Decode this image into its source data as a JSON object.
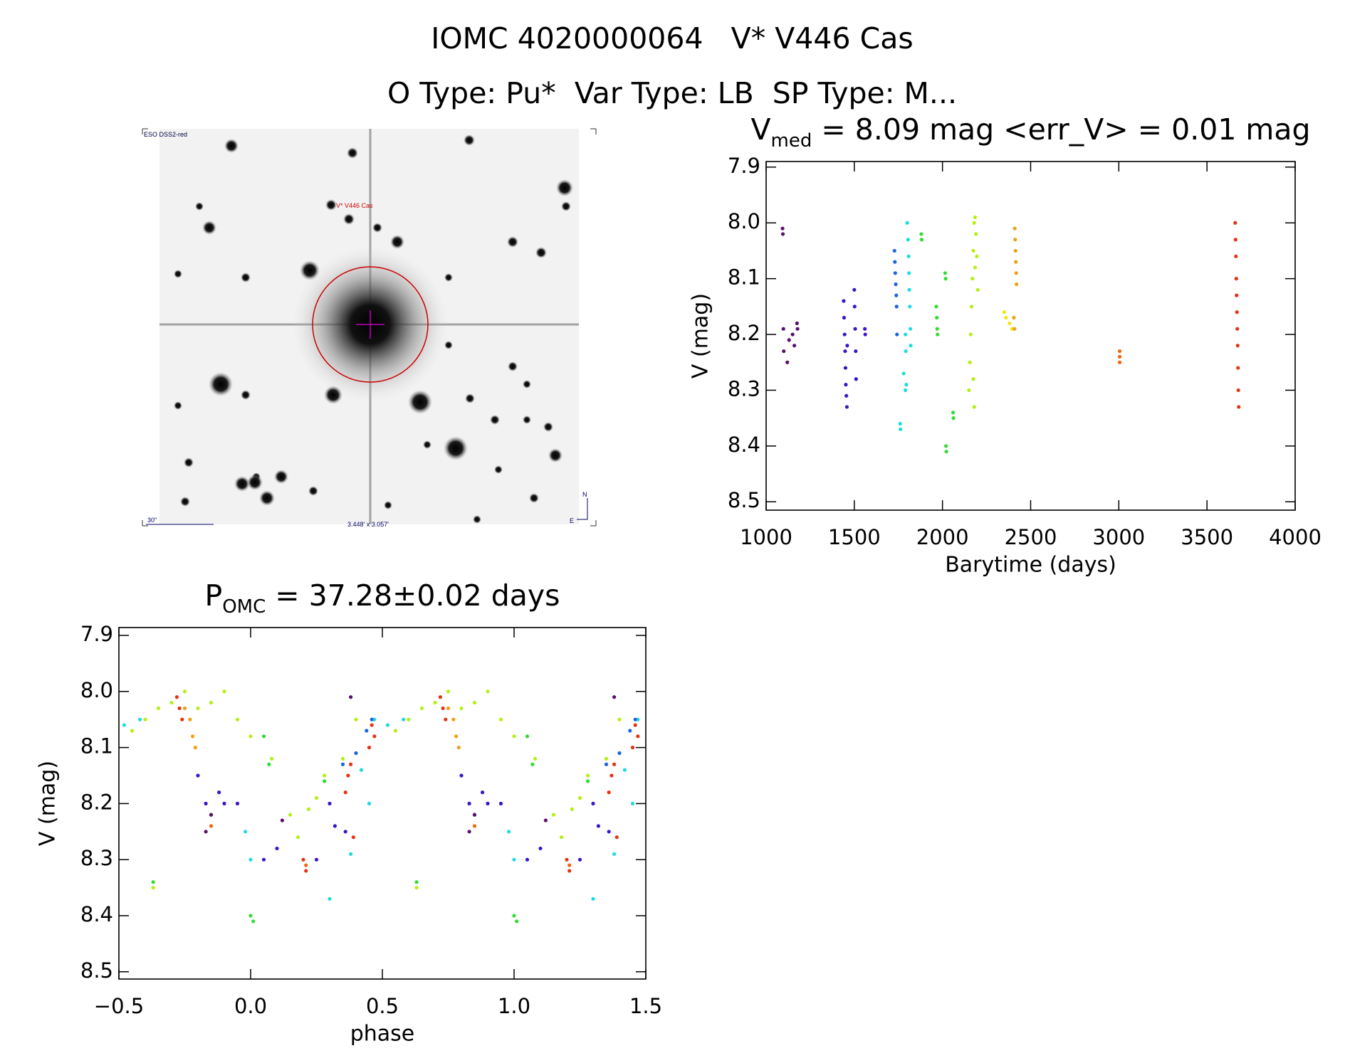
{
  "header": {
    "title": "IOMC 4020000064   V* V446 Cas",
    "subtitle": "O Type: Pu*  Var Type: LB  SP Type: M..."
  },
  "image": {
    "label": "ESO DSS2-red",
    "target": "V* V446 Cas",
    "scale": "30\"",
    "size": "3.448' x 3.057'",
    "north": "N",
    "east": "E"
  },
  "chart_data": [
    {
      "type": "scatter",
      "title": "V",
      "title_sub": "med",
      "title_rest": " = 8.09 mag <err_V> = 0.01 mag",
      "xlabel": "Barytime (days)",
      "ylabel": "V (mag)",
      "xlim": [
        1000,
        4000
      ],
      "xticks": [
        1000,
        1500,
        2000,
        2500,
        3000,
        3500,
        4000
      ],
      "ylim": [
        8.515,
        7.89
      ],
      "yticks": [
        7.9,
        {
          "value": 8,
          "label": "8.0"
        },
        8.1,
        8.2,
        8.3,
        8.4,
        8.5
      ],
      "series": [
        {
          "color": "#5a0f6e",
          "x": [
            1093,
            1095,
            1098,
            1100,
            1120,
            1130,
            1150,
            1160,
            1175,
            1178
          ],
          "values": [
            8.01,
            8.02,
            8.19,
            8.23,
            8.25,
            8.21,
            8.2,
            8.22,
            8.18,
            8.19
          ]
        },
        {
          "color": "#3c14c8",
          "x": [
            1440,
            1442,
            1445,
            1448,
            1450,
            1452,
            1455,
            1458,
            1460,
            1500,
            1502,
            1505,
            1508,
            1510,
            1560,
            1562
          ],
          "values": [
            8.14,
            8.17,
            8.2,
            8.23,
            8.26,
            8.29,
            8.31,
            8.33,
            8.22,
            8.12,
            8.15,
            8.19,
            8.23,
            8.28,
            8.19,
            8.2
          ]
        },
        {
          "color": "#1e64dc",
          "x": [
            1728,
            1730,
            1732,
            1735,
            1738,
            1740,
            1742
          ],
          "values": [
            8.05,
            8.07,
            8.09,
            8.11,
            8.13,
            8.15,
            8.2
          ]
        },
        {
          "color": "#1edcdc",
          "x": [
            1760,
            1762,
            1780,
            1790,
            1795,
            1800,
            1805,
            1808,
            1810,
            1812,
            1815,
            1818,
            1820,
            1790,
            1792
          ],
          "values": [
            8.36,
            8.37,
            8.27,
            8.3,
            8.29,
            8.0,
            8.03,
            8.06,
            8.09,
            8.12,
            8.15,
            8.19,
            8.22,
            8.2,
            8.23
          ]
        },
        {
          "color": "#32dc32",
          "x": [
            1880,
            1882,
            1965,
            1968,
            1970,
            1972,
            2015,
            2018,
            2020,
            2022,
            2060,
            2062
          ],
          "values": [
            8.02,
            8.03,
            8.15,
            8.17,
            8.19,
            8.2,
            8.09,
            8.1,
            8.4,
            8.41,
            8.34,
            8.35
          ]
        },
        {
          "color": "#b4f014",
          "x": [
            2150,
            2155,
            2160,
            2165,
            2170,
            2175,
            2180,
            2185,
            2190,
            2195,
            2200,
            2180,
            2185,
            2175
          ],
          "values": [
            8.3,
            8.25,
            8.2,
            8.15,
            8.1,
            8.05,
            8.0,
            7.99,
            8.02,
            8.06,
            8.12,
            8.33,
            8.08,
            8.28
          ]
        },
        {
          "color": "#f0e614",
          "x": [
            2350,
            2360,
            2380,
            2395
          ],
          "values": [
            8.16,
            8.17,
            8.18,
            8.19
          ]
        },
        {
          "color": "#f0a014",
          "x": [
            2410,
            2412,
            2414,
            2416,
            2418,
            2420,
            2405,
            2408
          ],
          "values": [
            8.01,
            8.03,
            8.05,
            8.07,
            8.09,
            8.11,
            8.17,
            8.19
          ]
        },
        {
          "color": "#f06414",
          "x": [
            3005,
            3005,
            3005
          ],
          "values": [
            8.23,
            8.24,
            8.25
          ]
        },
        {
          "color": "#e63214",
          "x": [
            3660,
            3662,
            3664,
            3666,
            3668,
            3670,
            3672,
            3674,
            3676,
            3678,
            3680
          ],
          "values": [
            8.0,
            8.03,
            8.06,
            8.1,
            8.13,
            8.16,
            8.19,
            8.22,
            8.26,
            8.3,
            8.33
          ]
        }
      ]
    },
    {
      "type": "scatter",
      "title": "P",
      "title_sub": "OMC",
      "title_rest": " = 37.28±0.02 days",
      "xlabel": "phase",
      "ylabel": "V (mag)",
      "xlim": [
        -0.5,
        1.5
      ],
      "xticks": [
        {
          "value": -0.5,
          "label": "−0.5"
        },
        {
          "value": 0,
          "label": "0.0"
        },
        0.5,
        {
          "value": 1,
          "label": "1.0"
        },
        1.5
      ],
      "ylim": [
        8.513,
        7.886
      ],
      "yticks": [
        7.9,
        {
          "value": 8,
          "label": "8.0"
        },
        8.1,
        8.2,
        8.3,
        8.4,
        8.5
      ],
      "series": [
        {
          "color": "#b4f014",
          "x": [
            -0.45,
            -0.4,
            -0.35,
            -0.3,
            -0.25,
            -0.2,
            -0.15,
            -0.1,
            -0.05,
            0.0,
            0.08,
            0.15,
            0.18,
            0.22,
            0.25,
            0.28,
            0.35,
            0.4,
            -0.37,
            0.55,
            0.6,
            0.65,
            0.7,
            0.75,
            0.8,
            0.85,
            0.9,
            0.95,
            1.0,
            1.08,
            1.15,
            1.18,
            1.22,
            1.25,
            1.28,
            1.35,
            1.4,
            0.63
          ],
          "values": [
            8.07,
            8.05,
            8.03,
            8.02,
            8.0,
            8.03,
            8.02,
            8.0,
            8.05,
            8.08,
            8.12,
            8.22,
            8.26,
            8.21,
            8.19,
            8.15,
            8.12,
            8.05,
            8.35,
            8.07,
            8.05,
            8.03,
            8.02,
            8.0,
            8.03,
            8.02,
            8.0,
            8.05,
            8.08,
            8.12,
            8.22,
            8.26,
            8.21,
            8.19,
            8.15,
            8.12,
            8.05,
            8.35
          ]
        },
        {
          "color": "#1edcdc",
          "x": [
            -0.48,
            -0.42,
            -0.02,
            0.0,
            0.3,
            0.42,
            0.45,
            0.47,
            0.38,
            0.52,
            0.58,
            0.98,
            1.0,
            1.3,
            1.42,
            1.45,
            1.47,
            1.38
          ],
          "values": [
            8.06,
            8.05,
            8.25,
            8.3,
            8.37,
            8.14,
            8.2,
            8.05,
            8.29,
            8.06,
            8.05,
            8.25,
            8.3,
            8.37,
            8.14,
            8.2,
            8.05,
            8.29
          ]
        },
        {
          "color": "#1e64dc",
          "x": [
            0.35,
            0.4,
            0.44,
            0.46,
            1.35,
            1.4,
            1.44,
            1.46
          ],
          "values": [
            8.13,
            8.11,
            8.07,
            8.05,
            8.13,
            8.11,
            8.07,
            8.05
          ]
        },
        {
          "color": "#3c14c8",
          "x": [
            -0.2,
            -0.17,
            -0.15,
            -0.12,
            -0.1,
            -0.05,
            0.05,
            0.1,
            0.25,
            0.3,
            0.32,
            0.36,
            0.8,
            0.83,
            0.85,
            0.88,
            0.9,
            0.95,
            1.05,
            1.1,
            1.25,
            1.3,
            1.32,
            1.36
          ],
          "values": [
            8.15,
            8.2,
            8.22,
            8.18,
            8.2,
            8.2,
            8.3,
            8.28,
            8.3,
            8.2,
            8.24,
            8.25,
            8.15,
            8.2,
            8.22,
            8.18,
            8.2,
            8.2,
            8.3,
            8.28,
            8.3,
            8.2,
            8.24,
            8.25
          ]
        },
        {
          "color": "#5a0f6e",
          "x": [
            -0.17,
            -0.15,
            0.12,
            0.38,
            0.83,
            0.85,
            1.12,
            1.38
          ],
          "values": [
            8.25,
            8.22,
            8.23,
            8.01,
            8.25,
            8.22,
            8.23,
            8.01
          ]
        },
        {
          "color": "#32dc32",
          "x": [
            -0.37,
            0.0,
            0.01,
            0.05,
            0.07,
            0.28,
            0.63,
            1.0,
            1.01,
            1.05,
            1.07,
            1.28
          ],
          "values": [
            8.34,
            8.4,
            8.41,
            8.08,
            8.13,
            8.16,
            8.34,
            8.4,
            8.41,
            8.08,
            8.13,
            8.16
          ]
        },
        {
          "color": "#f0a014",
          "x": [
            -0.25,
            -0.23,
            -0.22,
            -0.21,
            0.75,
            0.77,
            0.78,
            0.79
          ],
          "values": [
            8.03,
            8.05,
            8.08,
            8.1,
            8.03,
            8.05,
            8.08,
            8.1
          ]
        },
        {
          "color": "#e63214",
          "x": [
            -0.28,
            -0.27,
            -0.26,
            0.2,
            0.21,
            0.36,
            0.37,
            0.38,
            0.39,
            0.45,
            0.46,
            0.47,
            0.72,
            0.73,
            0.74,
            1.2,
            1.21,
            1.36,
            1.37,
            1.38,
            1.39,
            1.45,
            1.46,
            1.47
          ],
          "values": [
            8.01,
            8.03,
            8.05,
            8.3,
            8.32,
            8.18,
            8.15,
            8.13,
            8.26,
            8.1,
            8.06,
            8.08,
            8.01,
            8.03,
            8.05,
            8.3,
            8.32,
            8.18,
            8.15,
            8.13,
            8.26,
            8.1,
            8.06,
            8.08
          ]
        },
        {
          "color": "#f06414",
          "x": [
            -0.15,
            0.21,
            0.85,
            1.21
          ],
          "values": [
            8.24,
            8.31,
            8.24,
            8.31
          ]
        }
      ]
    }
  ]
}
